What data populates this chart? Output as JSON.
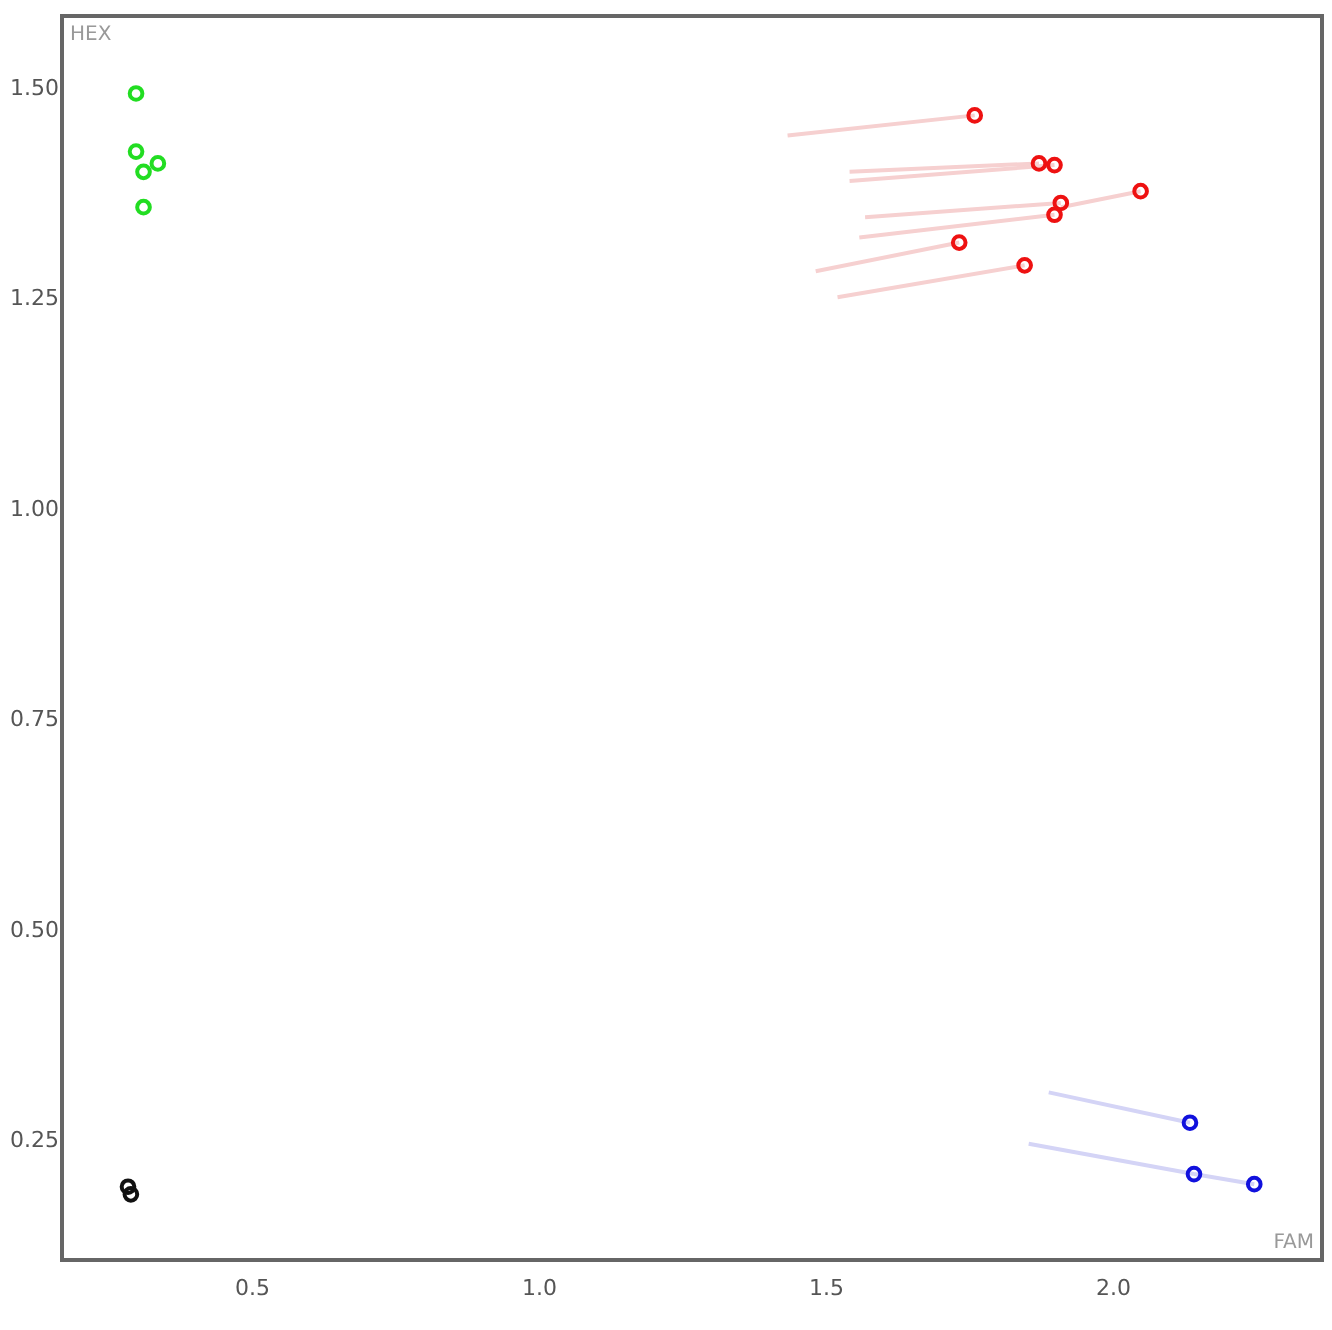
{
  "chart_data": {
    "type": "scatter",
    "xlabel": "FAM",
    "ylabel": "HEX",
    "grid": false,
    "xlim": [
      0.17,
      2.365
    ],
    "ylim": [
      0.108,
      1.585
    ],
    "xticks": [
      0.5,
      {
        "value": 1.0,
        "label": "1.0"
      },
      1.5,
      {
        "value": 2.0,
        "label": "2.0"
      }
    ],
    "yticks": [
      0.25,
      {
        "value": 0.5,
        "label": "0.50"
      },
      0.75,
      {
        "value": 1.0,
        "label": "1.00"
      },
      1.25,
      {
        "value": 1.5,
        "label": "1.50"
      }
    ],
    "series": [
      {
        "type": "line",
        "color": "#f6d0d0",
        "x": [
          1.434,
          1.76
        ],
        "values": [
          1.443,
          1.467
        ]
      },
      {
        "type": "line",
        "color": "#f6d0d0",
        "x": [
          1.542,
          1.872
        ],
        "values": [
          1.4,
          1.41
        ]
      },
      {
        "type": "line",
        "color": "#f6d0d0",
        "x": [
          1.542,
          1.899
        ],
        "values": [
          1.389,
          1.408
        ]
      },
      {
        "type": "line",
        "color": "#f6d0d0",
        "x": [
          1.569,
          1.91
        ],
        "values": [
          1.346,
          1.363
        ]
      },
      {
        "type": "line",
        "color": "#f6d0d0",
        "x": [
          1.559,
          1.899
        ],
        "values": [
          1.322,
          1.349
        ]
      },
      {
        "type": "line",
        "color": "#f6d0d0",
        "x": [
          1.91,
          2.049
        ],
        "values": [
          1.358,
          1.377
        ]
      },
      {
        "type": "line",
        "color": "#f6d0d0",
        "x": [
          1.483,
          1.733
        ],
        "values": [
          1.282,
          1.316
        ]
      },
      {
        "type": "line",
        "color": "#f6d0d0",
        "x": [
          1.521,
          1.847
        ],
        "values": [
          1.251,
          1.289
        ]
      },
      {
        "type": "line",
        "color": "#d4d4f6",
        "x": [
          1.889,
          2.135
        ],
        "values": [
          0.307,
          0.271
        ]
      },
      {
        "type": "line",
        "color": "#d4d4f6",
        "x": [
          1.854,
          2.142
        ],
        "values": [
          0.246,
          0.21
        ]
      },
      {
        "type": "line",
        "color": "#d4d4f6",
        "x": [
          2.142,
          2.247
        ],
        "values": [
          0.21,
          0.198
        ]
      },
      {
        "marker": "circle",
        "color": "#22dd22",
        "x": [
          0.299,
          0.299,
          0.312,
          0.337,
          0.312
        ],
        "values": [
          1.493,
          1.424,
          1.4,
          1.41,
          1.358
        ]
      },
      {
        "marker": "circle",
        "color": "#111111",
        "x": [
          0.285,
          0.29
        ],
        "values": [
          0.195,
          0.186
        ]
      },
      {
        "marker": "circle",
        "color": "#ee1111",
        "x": [
          1.76,
          1.872,
          1.899,
          2.049,
          1.91,
          1.899,
          1.733,
          1.847
        ],
        "values": [
          1.467,
          1.41,
          1.408,
          1.377,
          1.363,
          1.349,
          1.316,
          1.289
        ]
      },
      {
        "marker": "circle",
        "color": "#1111dd",
        "x": [
          2.135,
          2.142,
          2.247
        ],
        "values": [
          0.271,
          0.21,
          0.198
        ]
      }
    ]
  }
}
